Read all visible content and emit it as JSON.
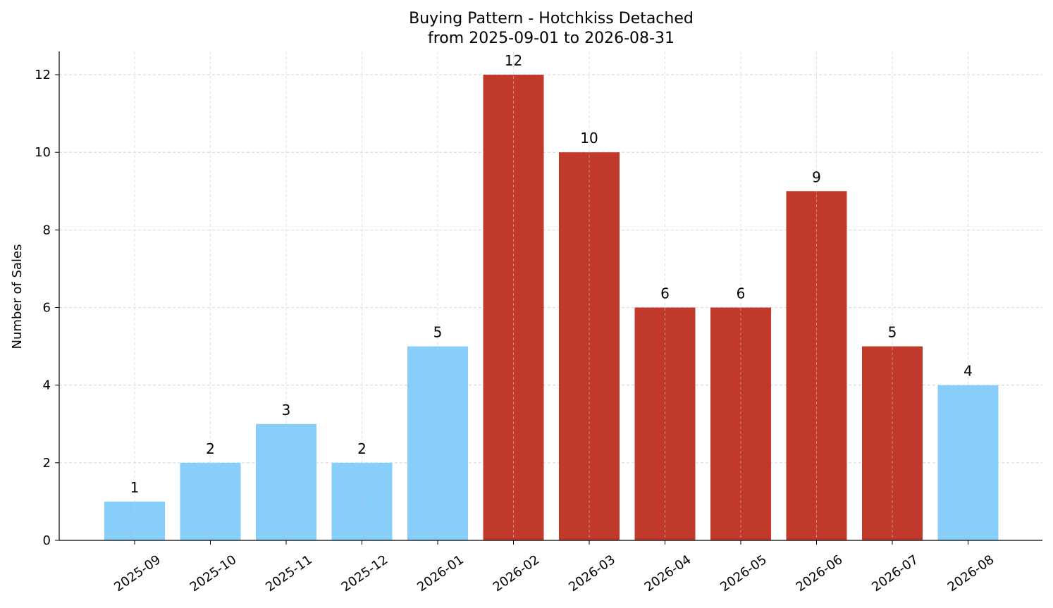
{
  "chart_data": {
    "type": "bar",
    "title": "Buying Pattern - Hotchkiss Detached",
    "subtitle": "from 2025-09-01 to 2026-08-31",
    "xlabel": "",
    "ylabel": "Number of Sales",
    "categories": [
      "2025-09",
      "2025-10",
      "2025-11",
      "2025-12",
      "2026-01",
      "2026-02",
      "2026-03",
      "2026-04",
      "2026-05",
      "2026-06",
      "2026-07",
      "2026-08"
    ],
    "values": [
      1,
      2,
      3,
      2,
      5,
      12,
      10,
      6,
      6,
      9,
      5,
      4
    ],
    "bar_colors": [
      "#87CEFA",
      "#87CEFA",
      "#87CEFA",
      "#87CEFA",
      "#87CEFA",
      "#C0392B",
      "#C0392B",
      "#C0392B",
      "#C0392B",
      "#C0392B",
      "#C0392B",
      "#87CEFA"
    ],
    "ylim": [
      0,
      12.6
    ],
    "yticks": [
      0,
      2,
      4,
      6,
      8,
      10,
      12
    ],
    "grid": true,
    "legend": "none"
  }
}
